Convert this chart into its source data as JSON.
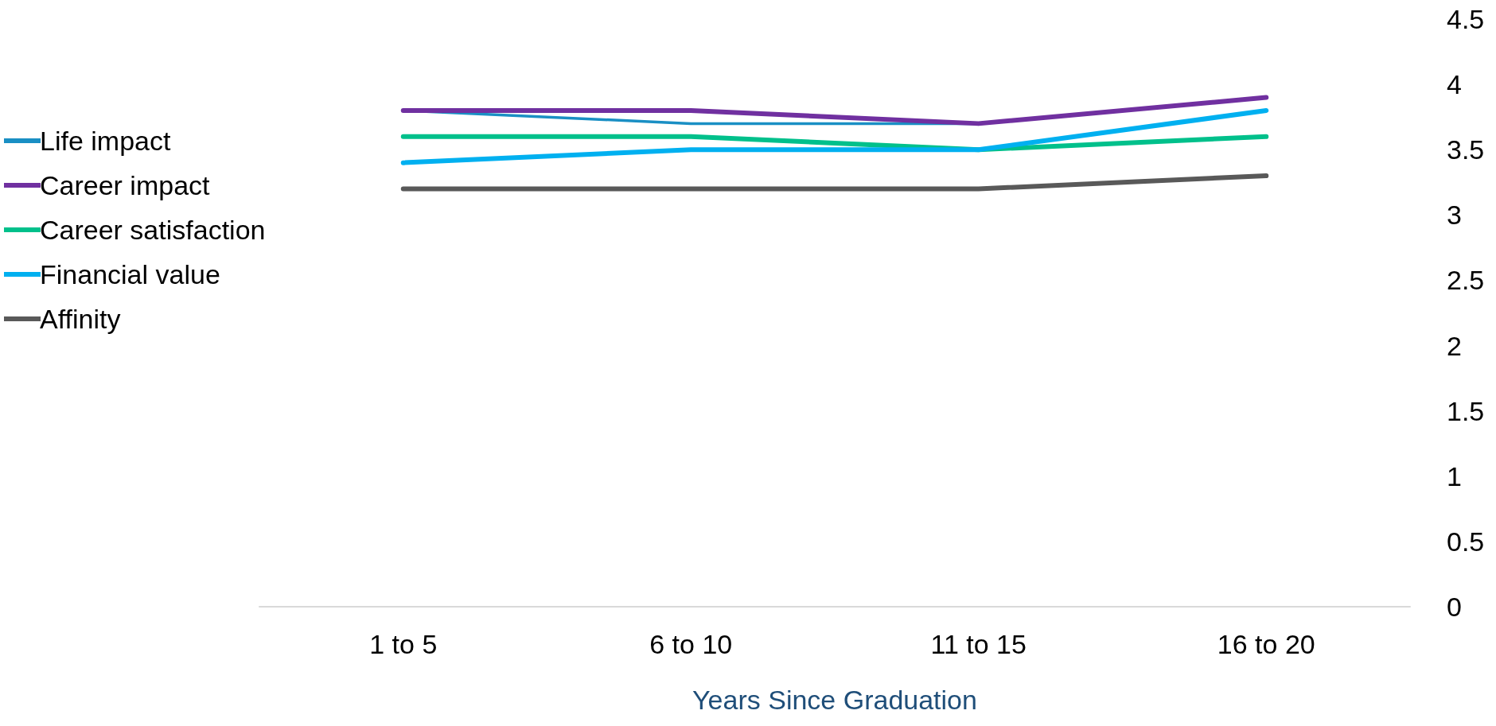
{
  "chart_data": {
    "type": "line",
    "xlabel": "Years Since Graduation",
    "categories": [
      "1 to 5",
      "6 to 10",
      "11 to 15",
      "16 to 20"
    ],
    "series": [
      {
        "name": "Life impact",
        "color": "#1a8fc4",
        "values": [
          3.8,
          3.7,
          3.7,
          3.9
        ]
      },
      {
        "name": "Career impact",
        "color": "#7030a0",
        "values": [
          3.8,
          3.8,
          3.7,
          3.9
        ]
      },
      {
        "name": "Career satisfaction",
        "color": "#00c08b",
        "values": [
          3.6,
          3.6,
          3.5,
          3.6
        ]
      },
      {
        "name": "Financial value",
        "color": "#00b0f0",
        "values": [
          3.4,
          3.5,
          3.5,
          3.8
        ]
      },
      {
        "name": "Affinity",
        "color": "#595959",
        "values": [
          3.2,
          3.2,
          3.2,
          3.3
        ]
      }
    ],
    "ylim": [
      0,
      4.5
    ],
    "yticks": [
      0,
      0.5,
      1,
      1.5,
      2,
      2.5,
      3,
      3.5,
      4,
      4.5
    ],
    "grid": false,
    "legend": "left",
    "marker": "none",
    "line_style": "solid"
  }
}
